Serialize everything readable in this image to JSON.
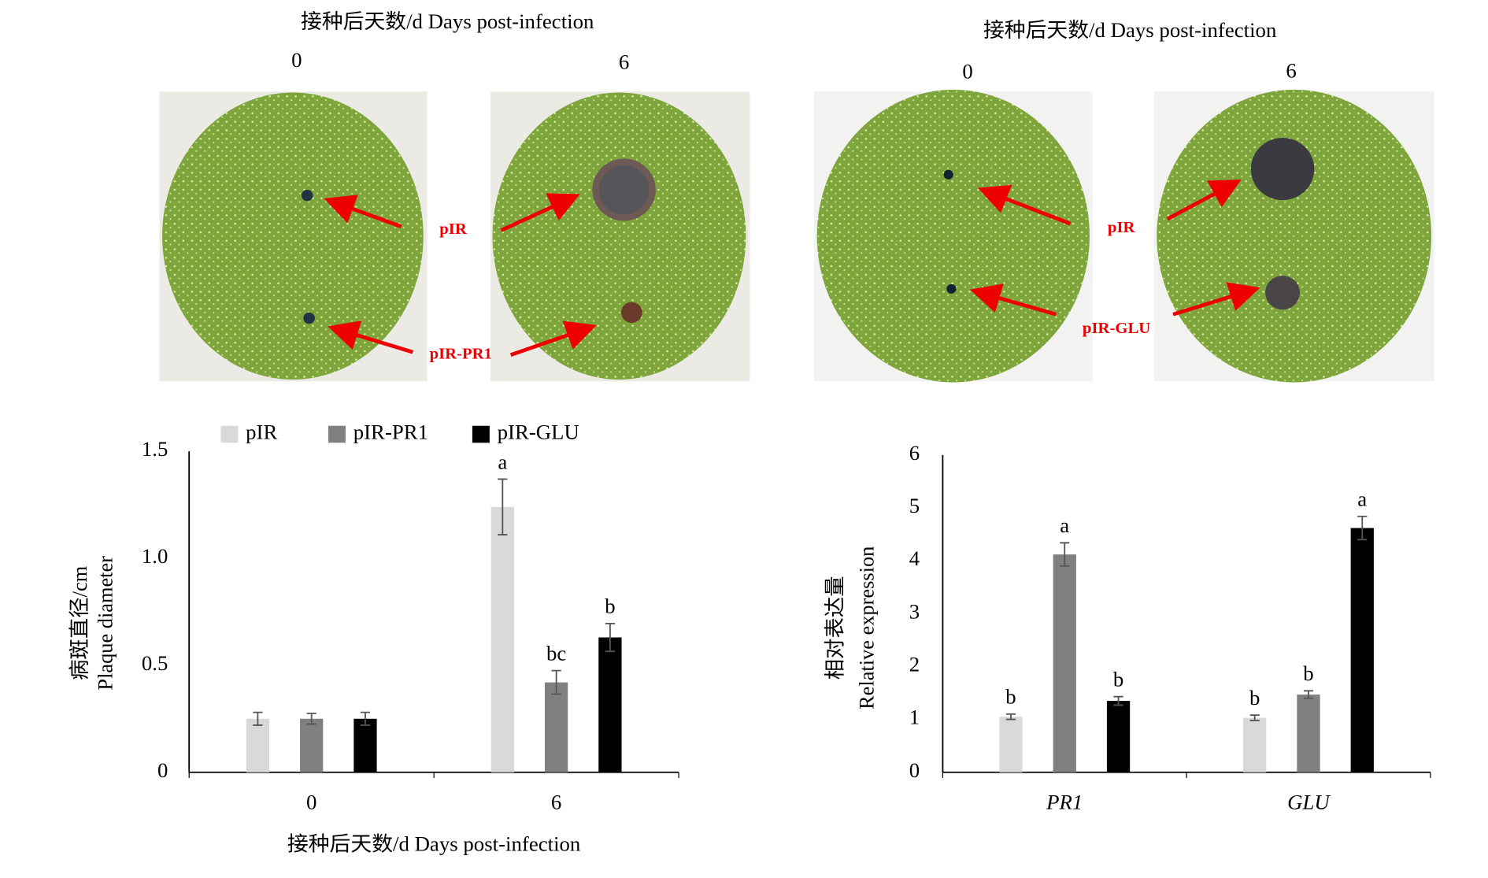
{
  "photos": [
    {
      "title": "接种后天数/d  Days post-infection",
      "days": [
        "0",
        "6"
      ],
      "labels": [
        "pIR",
        "pIR-PR1"
      ]
    },
    {
      "title": "接种后天数/d  Days post-infection",
      "days": [
        "0",
        "6"
      ],
      "labels": [
        "pIR",
        "pIR-GLU"
      ]
    }
  ],
  "chart_data": [
    {
      "type": "bar",
      "xlabel": "接种后天数/d  Days post-infection",
      "ylabel": [
        "病斑直径/cm",
        "Plaque diameter"
      ],
      "categories": [
        "0",
        "6"
      ],
      "series": [
        {
          "name": "pIR",
          "color": "#d9d9d9",
          "values": [
            0.25,
            1.24
          ],
          "errors": [
            0.03,
            0.13
          ],
          "letters": [
            null,
            "a"
          ]
        },
        {
          "name": "pIR-PR1",
          "color": "#808080",
          "values": [
            0.25,
            0.42
          ],
          "errors": [
            0.025,
            0.055
          ],
          "letters": [
            null,
            "bc"
          ]
        },
        {
          "name": "pIR-GLU",
          "color": "#000000",
          "values": [
            0.25,
            0.63
          ],
          "errors": [
            0.03,
            0.065
          ],
          "letters": [
            null,
            "b"
          ]
        }
      ],
      "ylim": [
        0,
        1.5
      ],
      "yticks": [
        0,
        0.5,
        {
          "value": 1,
          "label": "1.0"
        },
        1.5
      ],
      "legend": "top"
    },
    {
      "type": "bar",
      "ylabel": [
        "相对表达量",
        "Relative expression"
      ],
      "italic_categories": true,
      "categories": [
        "PR1",
        "GLU"
      ],
      "series": [
        {
          "color": "#d9d9d9",
          "values": [
            1.05,
            1.03
          ],
          "errors": [
            0.05,
            0.05
          ],
          "letters": [
            "b",
            "b"
          ]
        },
        {
          "color": "#808080",
          "values": [
            4.12,
            1.47
          ],
          "errors": [
            0.22,
            0.07
          ],
          "letters": [
            "a",
            "b"
          ]
        },
        {
          "color": "#000000",
          "values": [
            1.35,
            4.62
          ],
          "errors": [
            0.08,
            0.22
          ],
          "letters": [
            "b",
            "a"
          ]
        }
      ],
      "ylim": [
        0,
        6
      ],
      "yticks": [
        0,
        1,
        2,
        3,
        4,
        5,
        6
      ]
    }
  ]
}
